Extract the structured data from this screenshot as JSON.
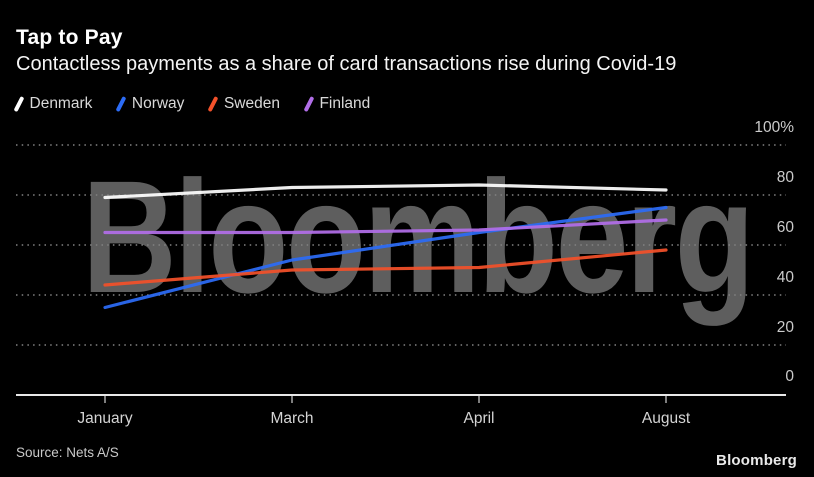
{
  "header": {
    "title": "Tap to Pay",
    "subtitle": "Contactless payments as a share of card transactions rise during Covid-19"
  },
  "watermark": "Bloomberg",
  "footer": {
    "source": "Source: Nets A/S",
    "logo": "Bloomberg"
  },
  "chart_data": {
    "type": "line",
    "title": "Tap to Pay",
    "subtitle": "Contactless payments as a share of card transactions rise during Covid-19",
    "unit": "%",
    "categories": [
      "January",
      "March",
      "April",
      "August"
    ],
    "series": [
      {
        "name": "Denmark",
        "color": "#ffffff",
        "values": [
          79,
          83,
          84,
          82
        ]
      },
      {
        "name": "Norway",
        "color": "#2c6cf6",
        "values": [
          35,
          54,
          65,
          75
        ]
      },
      {
        "name": "Sweden",
        "color": "#f3512a",
        "values": [
          44,
          50,
          51,
          58
        ]
      },
      {
        "name": "Finland",
        "color": "#b16ee8",
        "values": [
          65,
          65,
          66,
          70
        ]
      }
    ],
    "ylim": [
      0,
      100
    ],
    "y_tick_values": [
      100,
      80,
      60,
      40,
      20,
      0
    ],
    "y_tick_labels": [
      "100%",
      "80",
      "60",
      "40",
      "20",
      "0"
    ],
    "grid": "horizontal-dotted",
    "legend_position": "top",
    "background": "#000000"
  }
}
